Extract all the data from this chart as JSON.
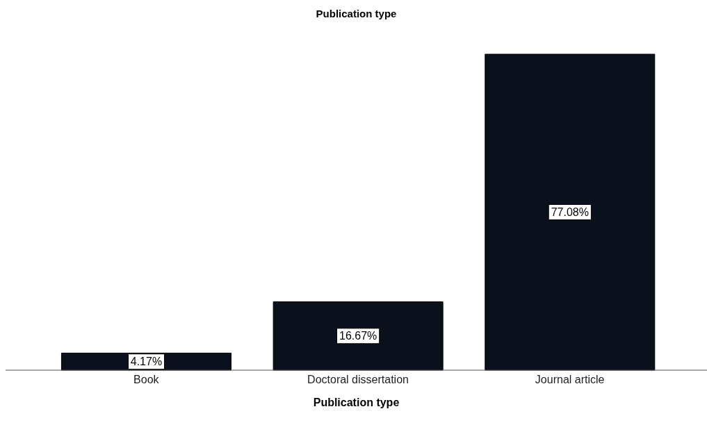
{
  "chart_data": {
    "type": "bar",
    "title": "Publication type",
    "xlabel": "Publication type",
    "categories": [
      "Book",
      "Doctoral dissertation",
      "Journal article"
    ],
    "values": [
      4.17,
      16.67,
      77.08
    ],
    "value_labels": [
      "4.17%",
      "16.67%",
      "77.08%"
    ],
    "color": "#0b111c",
    "grid": false
  }
}
